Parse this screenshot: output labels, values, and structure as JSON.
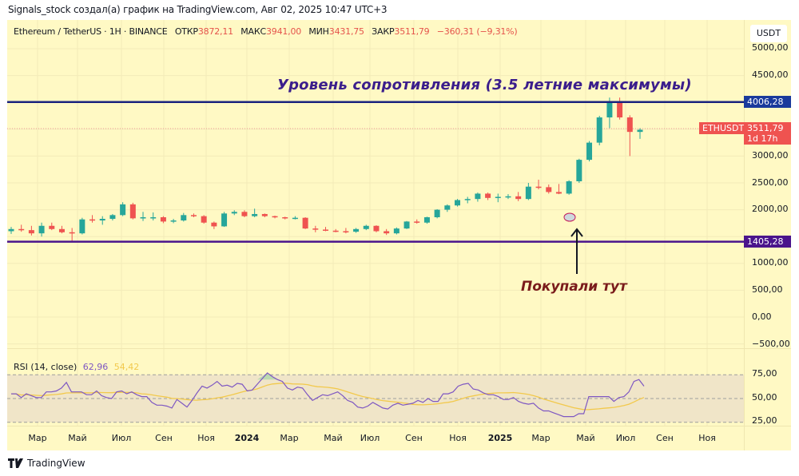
{
  "header": {
    "attribution": "Signals_stock создал(а) график на TradingView.com, Авг 02, 2025 10:47 UTC+3"
  },
  "legend": {
    "symbol": "Ethereum / TetherUS · 1H · BINANCE",
    "open_label": "ОТКР",
    "open": "3872,11",
    "high_label": "МАКС",
    "high": "3941,00",
    "low_label": "МИН",
    "low": "3431,75",
    "close_label": "ЗАКР",
    "close": "3511,79",
    "change": "−360,31 (−9,31%)"
  },
  "price_axis": {
    "currency": "USDT",
    "ticks": [
      "5000,00",
      "4500,00",
      "3000,00",
      "2500,00",
      "2000,00",
      "1500,00",
      "1000,00",
      "500,00",
      "0,00",
      "−500,00"
    ],
    "resistance_label": "4006,28",
    "support_label": "1405,28",
    "last_price_symbol": "ETHUSDT",
    "last_price": "3511,79",
    "countdown": "1d 17h"
  },
  "rsi": {
    "title": "RSI (14, close)",
    "value": "62,96",
    "ma_value": "54,42",
    "ticks": [
      "75,00",
      "50,00",
      "25,00"
    ]
  },
  "time_axis": {
    "ticks": [
      {
        "label": "Мар",
        "x": 47,
        "bold": false
      },
      {
        "label": "Май",
        "x": 97,
        "bold": false
      },
      {
        "label": "Июл",
        "x": 152,
        "bold": false
      },
      {
        "label": "Сен",
        "x": 205,
        "bold": false
      },
      {
        "label": "Ноя",
        "x": 258,
        "bold": false
      },
      {
        "label": "2024",
        "x": 309,
        "bold": true
      },
      {
        "label": "Мар",
        "x": 362,
        "bold": false
      },
      {
        "label": "Май",
        "x": 417,
        "bold": false
      },
      {
        "label": "Июл",
        "x": 463,
        "bold": false
      },
      {
        "label": "Сен",
        "x": 518,
        "bold": false
      },
      {
        "label": "Ноя",
        "x": 573,
        "bold": false
      },
      {
        "label": "2025",
        "x": 626,
        "bold": true
      },
      {
        "label": "Мар",
        "x": 677,
        "bold": false
      },
      {
        "label": "Май",
        "x": 733,
        "bold": false
      },
      {
        "label": "Июл",
        "x": 783,
        "bold": false
      },
      {
        "label": "Сен",
        "x": 832,
        "bold": false
      },
      {
        "label": "Ноя",
        "x": 885,
        "bold": false
      }
    ]
  },
  "annotations": {
    "resistance_text": "Уровень сопротивления (3.5 летние максимумы)",
    "buy_text": "Покупали тут"
  },
  "footer": {
    "brand": "TradingView"
  },
  "colors": {
    "background": "#fff9c4",
    "up": "#26a69a",
    "down": "#ef5350",
    "resistance": "#1a237e",
    "support": "#4a148c",
    "rsi_line": "#7e57c2",
    "rsi_ma": "#f2c94c"
  },
  "chart_data": {
    "type": "candlestick",
    "title": "Ethereum / TetherUS · 1H · BINANCE",
    "xlabel": "",
    "ylabel": "USDT",
    "ylim": [
      -650,
      5100
    ],
    "x_ticks": [
      "Мар",
      "Май",
      "Июл",
      "Сен",
      "Ноя",
      "2024",
      "Мар",
      "Май",
      "Июл",
      "Сен",
      "Ноя",
      "2025",
      "Мар",
      "Май",
      "Июл",
      "Сен",
      "Ноя"
    ],
    "horizontal_levels": [
      {
        "name": "Resistance (3.5-year highs)",
        "value": 4006.28
      },
      {
        "name": "Support",
        "value": 1405.28
      }
    ],
    "last": {
      "open": 3872.11,
      "high": 3941.0,
      "low": 3431.75,
      "close": 3511.79,
      "change": -360.31,
      "change_pct": -9.31
    },
    "candles": [
      [
        1600,
        1680,
        1550,
        1640
      ],
      [
        1640,
        1720,
        1590,
        1620
      ],
      [
        1620,
        1700,
        1520,
        1560
      ],
      [
        1560,
        1760,
        1500,
        1700
      ],
      [
        1700,
        1760,
        1620,
        1640
      ],
      [
        1640,
        1700,
        1560,
        1580
      ],
      [
        1580,
        1660,
        1400,
        1560
      ],
      [
        1560,
        1850,
        1540,
        1820
      ],
      [
        1820,
        1900,
        1760,
        1800
      ],
      [
        1800,
        1880,
        1720,
        1830
      ],
      [
        1830,
        1920,
        1800,
        1900
      ],
      [
        1900,
        2140,
        1880,
        2100
      ],
      [
        2100,
        2130,
        1820,
        1840
      ],
      [
        1840,
        1960,
        1790,
        1860
      ],
      [
        1860,
        1950,
        1800,
        1860
      ],
      [
        1860,
        1880,
        1750,
        1780
      ],
      [
        1780,
        1830,
        1750,
        1800
      ],
      [
        1800,
        1940,
        1780,
        1900
      ],
      [
        1900,
        1930,
        1860,
        1880
      ],
      [
        1880,
        1900,
        1740,
        1760
      ],
      [
        1760,
        1780,
        1640,
        1690
      ],
      [
        1690,
        1960,
        1680,
        1930
      ],
      [
        1930,
        1990,
        1900,
        1960
      ],
      [
        1960,
        1990,
        1860,
        1880
      ],
      [
        1880,
        2020,
        1860,
        1920
      ],
      [
        1920,
        1930,
        1860,
        1880
      ],
      [
        1880,
        1890,
        1840,
        1860
      ],
      [
        1860,
        1870,
        1820,
        1840
      ],
      [
        1840,
        1880,
        1820,
        1850
      ],
      [
        1850,
        1860,
        1640,
        1650
      ],
      [
        1650,
        1700,
        1580,
        1630
      ],
      [
        1630,
        1680,
        1600,
        1610
      ],
      [
        1610,
        1640,
        1580,
        1600
      ],
      [
        1600,
        1660,
        1560,
        1590
      ],
      [
        1590,
        1660,
        1570,
        1640
      ],
      [
        1640,
        1720,
        1620,
        1700
      ],
      [
        1700,
        1710,
        1580,
        1600
      ],
      [
        1600,
        1640,
        1530,
        1560
      ],
      [
        1560,
        1670,
        1540,
        1650
      ],
      [
        1650,
        1790,
        1640,
        1780
      ],
      [
        1780,
        1820,
        1740,
        1760
      ],
      [
        1760,
        1870,
        1740,
        1860
      ],
      [
        1860,
        2010,
        1840,
        2000
      ],
      [
        2000,
        2100,
        1960,
        2080
      ],
      [
        2080,
        2200,
        2060,
        2180
      ],
      [
        2180,
        2240,
        2120,
        2200
      ],
      [
        2200,
        2320,
        2150,
        2300
      ],
      [
        2300,
        2320,
        2180,
        2220
      ],
      [
        2220,
        2300,
        2140,
        2240
      ],
      [
        2240,
        2290,
        2200,
        2250
      ],
      [
        2250,
        2330,
        2160,
        2200
      ],
      [
        2200,
        2500,
        2180,
        2430
      ],
      [
        2430,
        2560,
        2380,
        2420
      ],
      [
        2420,
        2470,
        2300,
        2330
      ],
      [
        2330,
        2480,
        2290,
        2300
      ],
      [
        2300,
        2550,
        2280,
        2530
      ],
      [
        2530,
        2950,
        2500,
        2930
      ],
      [
        2930,
        3280,
        2900,
        3250
      ],
      [
        3250,
        3750,
        3200,
        3720
      ],
      [
        3720,
        4090,
        3520,
        4010
      ],
      [
        4010,
        4090,
        3680,
        3720
      ],
      [
        3720,
        3760,
        3000,
        3450
      ],
      [
        3450,
        3520,
        3320,
        3490
      ]
    ],
    "rsi_series": {
      "name": "RSI (14, close)",
      "last": 62.96,
      "ma_last": 54.42,
      "bands": [
        25,
        50,
        75
      ]
    }
  }
}
